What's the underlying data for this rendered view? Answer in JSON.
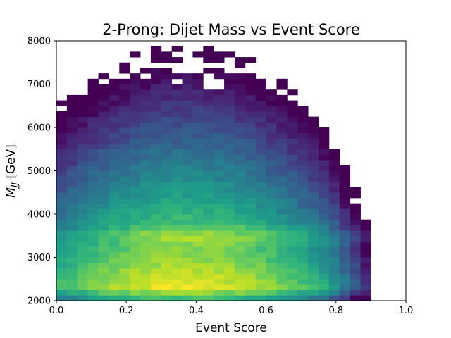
{
  "chart_data": {
    "type": "heatmap",
    "title": "2-Prong: Dijet Mass vs Event Score",
    "xlabel": "Event Score",
    "ylabel_main": "M",
    "ylabel_sub": "JJ",
    "ylabel_unit": " [GeV]",
    "xlim": [
      0,
      1
    ],
    "ylim": [
      2000,
      8000
    ],
    "x_ticks": [
      "0.0",
      "0.2",
      "0.4",
      "0.6",
      "0.8",
      "1.0"
    ],
    "x_tick_values": [
      0,
      0.2,
      0.4,
      0.6,
      0.8,
      1.0
    ],
    "y_ticks": [
      "2000",
      "3000",
      "4000",
      "5000",
      "6000",
      "7000",
      "8000"
    ],
    "y_tick_values": [
      2000,
      3000,
      4000,
      5000,
      6000,
      7000,
      8000
    ],
    "bins_x": 30,
    "x_bin_range": [
      0,
      0.9
    ],
    "y_bin_width": 125,
    "colormap": "viridis",
    "log_scale": true,
    "grid": false,
    "legend": "none",
    "density_model": {
      "peak_score": 0.37,
      "score_width": 0.2,
      "peak_mass": 2650,
      "mass_decay": 900,
      "secondary_mass": 3500,
      "secondary_width": 140,
      "turn_on_mass": 2300
    },
    "colors": [
      "#440154",
      "#482878",
      "#3e4989",
      "#31688e",
      "#26828e",
      "#1f9e89",
      "#35b779",
      "#6ece58",
      "#b5de2b",
      "#fde725"
    ]
  }
}
